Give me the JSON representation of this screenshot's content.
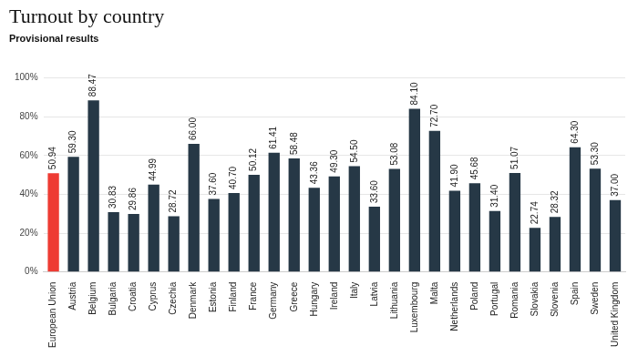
{
  "chart_data": {
    "type": "bar",
    "title": "Turnout by country",
    "subtitle": "Provisional results",
    "categories": [
      "European Union",
      "Austria",
      "Belgium",
      "Bulgaria",
      "Croatia",
      "Cyprus",
      "Czechia",
      "Denmark",
      "Estonia",
      "Finland",
      "France",
      "Germany",
      "Greece",
      "Hungary",
      "Ireland",
      "Italy",
      "Latvia",
      "Lithuania",
      "Luxembourg",
      "Malta",
      "Netherlands",
      "Poland",
      "Portugal",
      "Romania",
      "Slovakia",
      "Slovenia",
      "Spain",
      "Sweden",
      "United Kingdom"
    ],
    "values": [
      50.94,
      59.3,
      88.47,
      30.83,
      29.86,
      44.99,
      28.72,
      66,
      37.6,
      40.7,
      50.12,
      61.41,
      58.48,
      43.36,
      49.3,
      54.5,
      33.6,
      53.08,
      84.1,
      72.7,
      41.9,
      45.68,
      31.4,
      51.07,
      22.74,
      28.32,
      64.3,
      53.3,
      37
    ],
    "value_labels": [
      "50.94",
      "59.30",
      "88.47",
      "30.83",
      "29.86",
      "44.99",
      "28.72",
      "66.00",
      "37.60",
      "40.70",
      "50.12",
      "61.41",
      "58.48",
      "43.36",
      "49.30",
      "54.50",
      "33.60",
      "53.08",
      "84.10",
      "72.70",
      "41.90",
      "45.68",
      "31.40",
      "51.07",
      "22.74",
      "28.32",
      "64.30",
      "53.30",
      "37.00"
    ],
    "colors": [
      "#ee3b33",
      "#263846",
      "#263846",
      "#263846",
      "#263846",
      "#263846",
      "#263846",
      "#263846",
      "#263846",
      "#263846",
      "#263846",
      "#263846",
      "#263846",
      "#263846",
      "#263846",
      "#263846",
      "#263846",
      "#263846",
      "#263846",
      "#263846",
      "#263846",
      "#263846",
      "#263846",
      "#263846",
      "#263846",
      "#263846",
      "#263846",
      "#263846",
      "#263846"
    ],
    "ylim": [
      0,
      100
    ],
    "yticks": [
      {
        "value": 0,
        "label": "0%"
      },
      {
        "value": 20,
        "label": "20%"
      },
      {
        "value": 40,
        "label": "40%"
      },
      {
        "value": 60,
        "label": "60%"
      },
      {
        "value": 80,
        "label": "80%"
      },
      {
        "value": 100,
        "label": "100%"
      }
    ],
    "grid": true,
    "data_labels": true
  }
}
